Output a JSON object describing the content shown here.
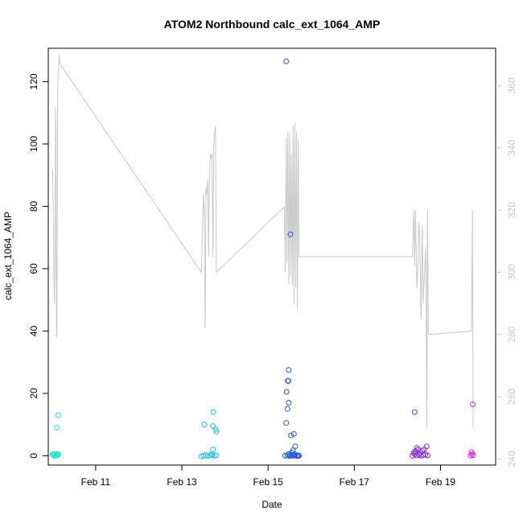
{
  "chart_data": {
    "type": "scatter",
    "title": "ATOM2 Northbound calc_ext_1064_AMP",
    "xlabel": "Date",
    "ylabel": "calc_ext_1064_AMP",
    "x_ticks": [
      {
        "value": 11,
        "label": "Feb 11"
      },
      {
        "value": 13,
        "label": "Feb 13"
      },
      {
        "value": 15,
        "label": "Feb 15"
      },
      {
        "value": 17,
        "label": "Feb 17"
      },
      {
        "value": 19,
        "label": "Feb 19"
      }
    ],
    "xlim": [
      9.9,
      20.28
    ],
    "ylim": [
      -3,
      130.7
    ],
    "y_ticks": [
      0,
      20,
      40,
      60,
      80,
      100,
      120
    ],
    "y2lim": [
      238,
      372
    ],
    "y2_ticks": [
      240,
      260,
      280,
      300,
      320,
      340,
      360
    ],
    "grid": false,
    "line_color": "#c8c8c8",
    "point_groups": [
      {
        "color": "#22e6c8",
        "points": [
          [
            10.0,
            0.4
          ],
          [
            10.02,
            0.2
          ],
          [
            10.04,
            0.6
          ],
          [
            10.06,
            0.1
          ],
          [
            10.08,
            0.3
          ],
          [
            10.1,
            0.5
          ],
          [
            10.12,
            0.2
          ],
          [
            10.14,
            0.4
          ],
          [
            10.05,
            -0.1
          ],
          [
            10.09,
            0.1
          ],
          [
            10.1,
            9.0
          ],
          [
            10.13,
            13.0
          ]
        ]
      },
      {
        "color": "#22c0e6",
        "points": [
          [
            13.45,
            -0.2
          ],
          [
            13.5,
            0.0
          ],
          [
            13.55,
            0.2
          ],
          [
            13.6,
            -0.1
          ],
          [
            13.65,
            0.1
          ],
          [
            13.7,
            0.3
          ],
          [
            13.75,
            0.0
          ],
          [
            13.8,
            0.1
          ],
          [
            13.68,
            0.4
          ],
          [
            13.72,
            2.0
          ],
          [
            13.52,
            10.0
          ],
          [
            13.72,
            9.5
          ],
          [
            13.78,
            8.5
          ],
          [
            13.8,
            7.8
          ],
          [
            13.73,
            14.0
          ]
        ]
      },
      {
        "color": "#2255e6",
        "points": [
          [
            15.4,
            0.0
          ],
          [
            15.45,
            0.2
          ],
          [
            15.5,
            -0.1
          ],
          [
            15.52,
            0.1
          ],
          [
            15.55,
            0.3
          ],
          [
            15.58,
            0.0
          ],
          [
            15.6,
            0.2
          ],
          [
            15.62,
            0.4
          ],
          [
            15.65,
            0.0
          ],
          [
            15.68,
            -0.1
          ],
          [
            15.7,
            0.1
          ],
          [
            15.72,
            0.0
          ],
          [
            15.48,
            0.5
          ],
          [
            15.56,
            1.0
          ],
          [
            15.58,
            1.8
          ],
          [
            15.63,
            3.0
          ],
          [
            15.53,
            6.5
          ],
          [
            15.6,
            7.0
          ],
          [
            15.42,
            10.5
          ],
          [
            15.45,
            15.0
          ],
          [
            15.48,
            17.0
          ],
          [
            15.43,
            20.5
          ],
          [
            15.46,
            24.0
          ],
          [
            15.47,
            24.0
          ],
          [
            15.48,
            27.5
          ],
          [
            15.52,
            71.0
          ],
          [
            15.42,
            126.5
          ]
        ]
      },
      {
        "color": "#8822e6",
        "points": [
          [
            18.35,
            0.0
          ],
          [
            18.4,
            0.5
          ],
          [
            18.45,
            0.1
          ],
          [
            18.5,
            0.3
          ],
          [
            18.55,
            0.0
          ],
          [
            18.6,
            0.2
          ],
          [
            18.65,
            0.4
          ],
          [
            18.7,
            0.1
          ],
          [
            18.38,
            1.0
          ],
          [
            18.42,
            1.5
          ],
          [
            18.48,
            2.0
          ],
          [
            18.52,
            0.8
          ],
          [
            18.58,
            1.5
          ],
          [
            18.62,
            2.0
          ],
          [
            18.45,
            2.5
          ],
          [
            18.68,
            3.0
          ],
          [
            18.4,
            14.0
          ]
        ]
      },
      {
        "color": "#e622e6",
        "points": [
          [
            19.7,
            0.0
          ],
          [
            19.73,
            0.5
          ],
          [
            19.76,
            0.2
          ],
          [
            19.72,
            1.2
          ],
          [
            19.75,
            16.5
          ]
        ]
      }
    ],
    "line_series": {
      "axis": "right",
      "points": [
        [
          10.0,
          333
        ],
        [
          10.02,
          315
        ],
        [
          10.04,
          290
        ],
        [
          10.06,
          310
        ],
        [
          10.07,
          353
        ],
        [
          10.08,
          345
        ],
        [
          10.09,
          279
        ],
        [
          10.1,
          282
        ],
        [
          10.12,
          360
        ],
        [
          10.13,
          363
        ],
        [
          10.15,
          370
        ],
        [
          10.17,
          367
        ],
        [
          13.45,
          300
        ],
        [
          13.5,
          325
        ],
        [
          13.52,
          320
        ],
        [
          13.54,
          282
        ],
        [
          13.56,
          327
        ],
        [
          13.58,
          325
        ],
        [
          13.6,
          330
        ],
        [
          13.62,
          305
        ],
        [
          13.64,
          330
        ],
        [
          13.66,
          338
        ],
        [
          13.68,
          337
        ],
        [
          13.7,
          338
        ],
        [
          13.72,
          305
        ],
        [
          13.74,
          340
        ],
        [
          13.76,
          345
        ],
        [
          13.78,
          347
        ],
        [
          13.8,
          300
        ],
        [
          15.38,
          321
        ],
        [
          15.4,
          300
        ],
        [
          15.42,
          343
        ],
        [
          15.44,
          303
        ],
        [
          15.46,
          345
        ],
        [
          15.48,
          296
        ],
        [
          15.5,
          345
        ],
        [
          15.52,
          299
        ],
        [
          15.54,
          338
        ],
        [
          15.56,
          296
        ],
        [
          15.58,
          347
        ],
        [
          15.6,
          290
        ],
        [
          15.62,
          348
        ],
        [
          15.64,
          295
        ],
        [
          15.66,
          345
        ],
        [
          15.68,
          288
        ],
        [
          15.7,
          343
        ],
        [
          15.72,
          305
        ],
        [
          18.35,
          305
        ],
        [
          18.38,
          320
        ],
        [
          18.4,
          302
        ],
        [
          18.42,
          320
        ],
        [
          18.45,
          295
        ],
        [
          18.48,
          303
        ],
        [
          18.5,
          316
        ],
        [
          18.52,
          312
        ],
        [
          18.55,
          285
        ],
        [
          18.58,
          315
        ],
        [
          18.6,
          290
        ],
        [
          18.63,
          300
        ],
        [
          18.66,
          308
        ],
        [
          18.68,
          250
        ],
        [
          18.7,
          320
        ],
        [
          18.72,
          280
        ],
        [
          19.72,
          281
        ],
        [
          19.74,
          320
        ],
        [
          19.76,
          250
        ]
      ]
    }
  }
}
